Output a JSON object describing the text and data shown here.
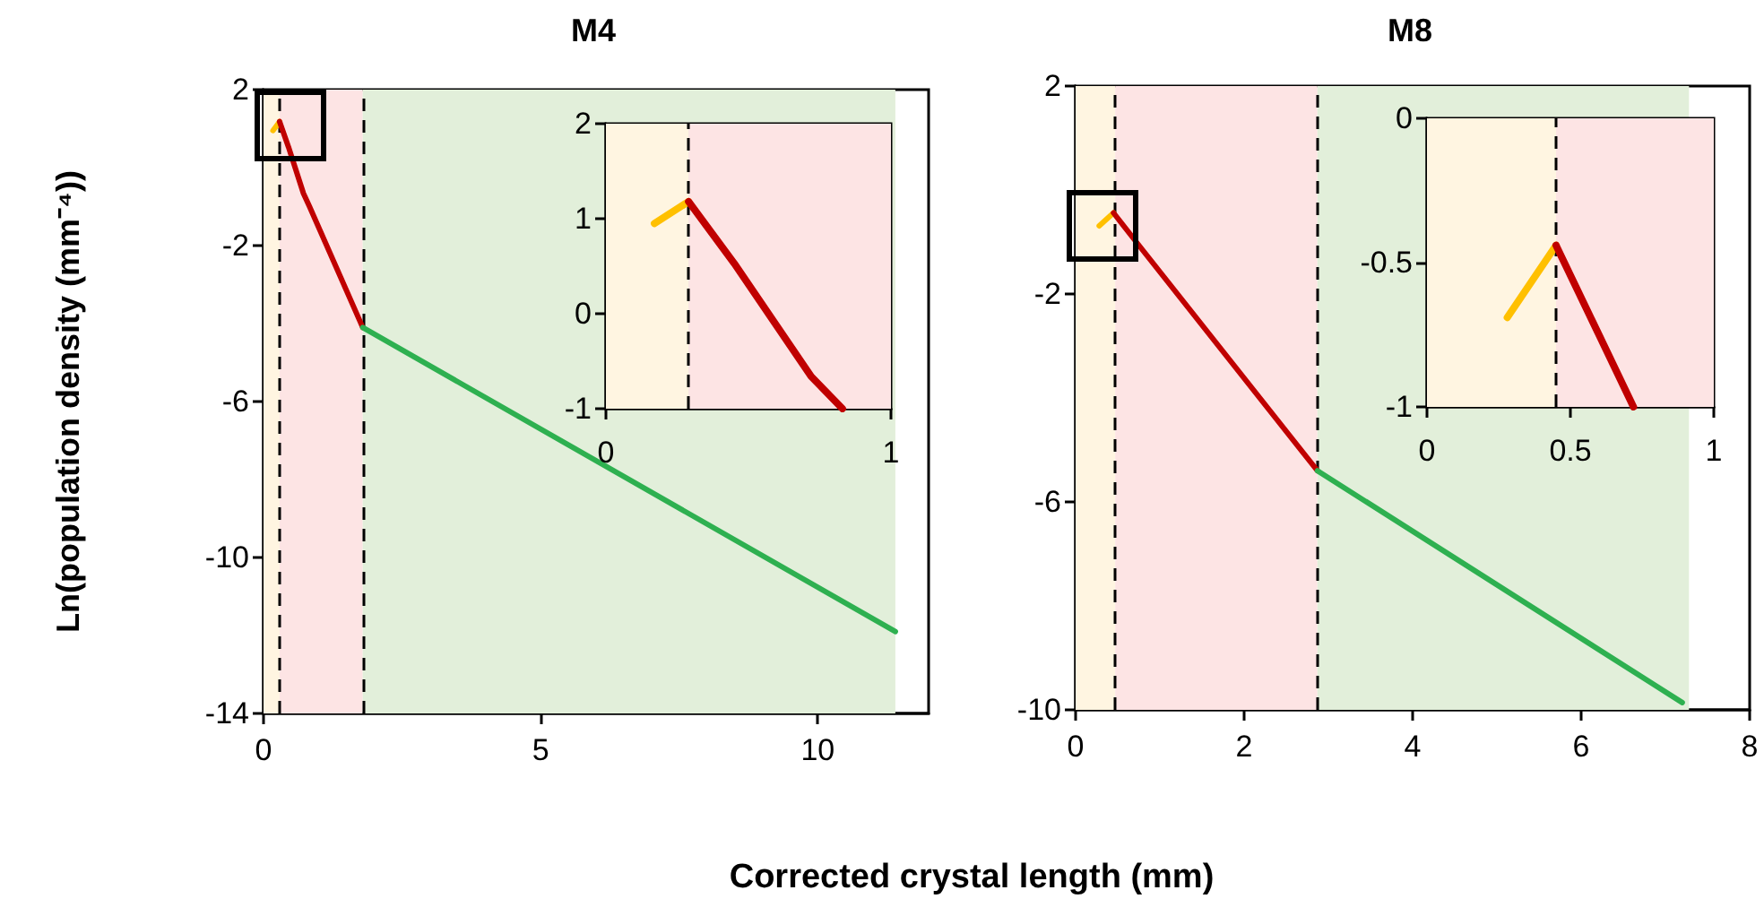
{
  "chart_data": [
    {
      "type": "line",
      "title": "M4",
      "ylabel": "Ln(population density (mm⁻⁴))",
      "xlabel": "Corrected crystal length (mm)",
      "xlim": [
        0,
        12
      ],
      "xticks": [
        0,
        5,
        10
      ],
      "ylim": [
        -14,
        2
      ],
      "yticks": [
        2,
        -2,
        -6,
        -10,
        -14
      ],
      "marker": "none",
      "bands": [
        {
          "axis": "x",
          "from": 0,
          "to": 0.29,
          "color": "#fff5e1"
        },
        {
          "axis": "x",
          "from": 0.29,
          "to": 1.79,
          "color": "#fde4e4"
        },
        {
          "axis": "x",
          "from": 1.79,
          "to": 11.4,
          "color": "#e2efda"
        }
      ],
      "ref_lines": [
        {
          "axis": "x",
          "value": 0.29,
          "color": "#000000",
          "line_style": "dashed"
        },
        {
          "axis": "x",
          "value": 1.79,
          "color": "#000000",
          "line_style": "dashed"
        }
      ],
      "series": [
        {
          "color": "#ffc000",
          "x": [
            0.17,
            0.29
          ],
          "values": [
            0.95,
            1.18
          ]
        },
        {
          "color": "#c00000",
          "x": [
            0.29,
            0.45,
            0.72,
            0.83,
            1.79
          ],
          "values": [
            1.18,
            0.53,
            -0.66,
            -1,
            -4.1
          ]
        },
        {
          "color": "#2eb050",
          "x": [
            1.79,
            11.4
          ],
          "values": [
            -4.1,
            -11.9
          ]
        }
      ]
    },
    {
      "type": "line",
      "xlim": [
        0,
        1
      ],
      "xticks": [
        0,
        1
      ],
      "ylim": [
        -1,
        2
      ],
      "yticks": [
        2,
        1,
        0,
        -1
      ],
      "marker": "none",
      "bands": [
        {
          "axis": "x",
          "from": 0,
          "to": 0.29,
          "color": "#fff5e1"
        },
        {
          "axis": "x",
          "from": 0.29,
          "to": 1,
          "color": "#fde4e4"
        }
      ],
      "ref_lines": [
        {
          "axis": "x",
          "value": 0.29,
          "color": "#000000",
          "line_style": "dashed"
        }
      ],
      "series": [
        {
          "color": "#ffc000",
          "x": [
            0.17,
            0.29
          ],
          "values": [
            0.95,
            1.18
          ]
        },
        {
          "color": "#c00000",
          "x": [
            0.29,
            0.45,
            0.72,
            0.83
          ],
          "values": [
            1.18,
            0.53,
            -0.66,
            -1
          ]
        }
      ]
    },
    {
      "type": "line",
      "title": "M8",
      "xlim": [
        0,
        8
      ],
      "xticks": [
        0,
        2,
        4,
        6,
        8
      ],
      "ylim": [
        -10,
        2
      ],
      "yticks": [
        2,
        -2,
        -6,
        -10
      ],
      "marker": "none",
      "bands": [
        {
          "axis": "x",
          "from": 0,
          "to": 0.47,
          "color": "#fff5e1"
        },
        {
          "axis": "x",
          "from": 0.47,
          "to": 2.87,
          "color": "#fde4e4"
        },
        {
          "axis": "x",
          "from": 2.87,
          "to": 7.28,
          "color": "#e2efda"
        }
      ],
      "ref_lines": [
        {
          "axis": "x",
          "value": 0.47,
          "color": "#000000",
          "line_style": "dashed"
        },
        {
          "axis": "x",
          "value": 2.87,
          "color": "#000000",
          "line_style": "dashed"
        }
      ],
      "series": [
        {
          "color": "#ffc000",
          "x": [
            0.28,
            0.45
          ],
          "values": [
            -0.69,
            -0.44
          ]
        },
        {
          "color": "#c00000",
          "x": [
            0.45,
            0.72,
            2.87
          ],
          "values": [
            -0.44,
            -1,
            -5.4
          ]
        },
        {
          "color": "#2eb050",
          "x": [
            2.87,
            7.2
          ],
          "values": [
            -5.4,
            -9.86
          ]
        }
      ]
    },
    {
      "type": "line",
      "xlim": [
        0,
        1
      ],
      "xticks": [
        0,
        0.5,
        1
      ],
      "ylim": [
        -1,
        0
      ],
      "yticks": [
        0,
        -0.5,
        -1
      ],
      "marker": "none",
      "bands": [
        {
          "axis": "x",
          "from": 0,
          "to": 0.45,
          "color": "#fff5e1"
        },
        {
          "axis": "x",
          "from": 0.45,
          "to": 1,
          "color": "#fde4e4"
        }
      ],
      "ref_lines": [
        {
          "axis": "x",
          "value": 0.45,
          "color": "#000000",
          "line_style": "dashed"
        }
      ],
      "series": [
        {
          "color": "#ffc000",
          "x": [
            0.28,
            0.45
          ],
          "values": [
            -0.69,
            -0.44
          ]
        },
        {
          "color": "#c00000",
          "x": [
            0.45,
            0.72
          ],
          "values": [
            -0.44,
            -1
          ]
        }
      ]
    }
  ]
}
